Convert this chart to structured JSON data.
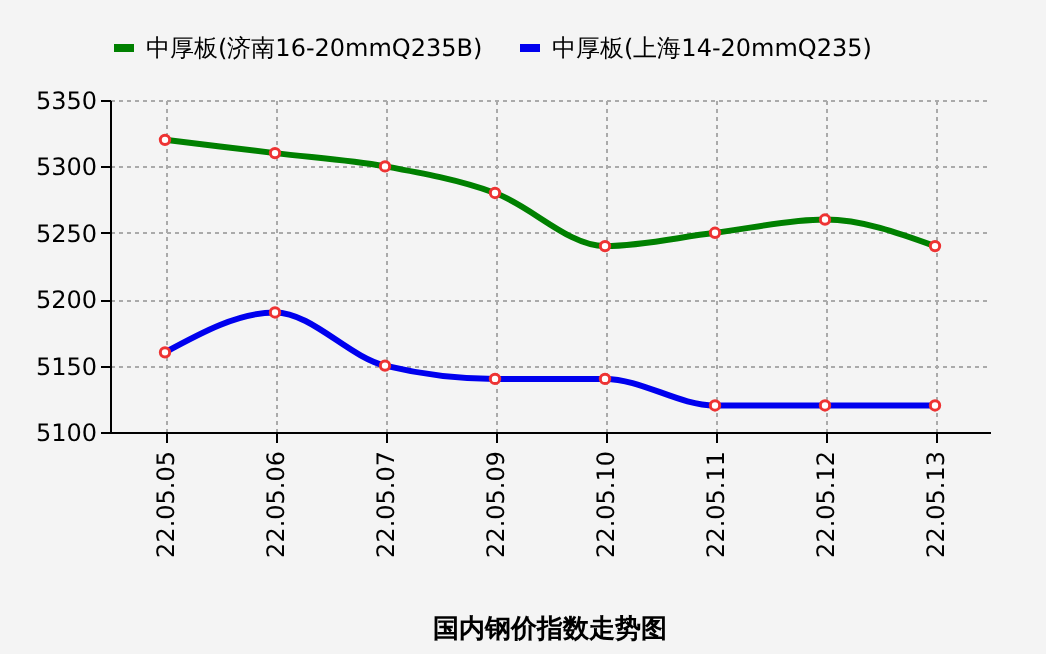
{
  "chart_data": {
    "type": "line",
    "title": "国内钢价指数走势图",
    "categories": [
      "22.05.05",
      "22.05.06",
      "22.05.07",
      "22.05.09",
      "22.05.10",
      "22.05.11",
      "22.05.12",
      "22.05.13"
    ],
    "series": [
      {
        "name": "中厚板(济南16-20mmQ235B)",
        "color": "#008000",
        "values": [
          5320,
          5310,
          5300,
          5280,
          5240,
          5250,
          5260,
          5240
        ]
      },
      {
        "name": "中厚板(上海14-20mmQ235)",
        "color": "#0000ee",
        "values": [
          5160,
          5190,
          5150,
          5140,
          5140,
          5120,
          5120,
          5120
        ]
      }
    ],
    "ylim": [
      5100,
      5350
    ],
    "yticks": [
      5100,
      5150,
      5200,
      5250,
      5300,
      5350
    ],
    "grid": true,
    "legend": "top",
    "marker": "circle",
    "line_style": "solid"
  }
}
